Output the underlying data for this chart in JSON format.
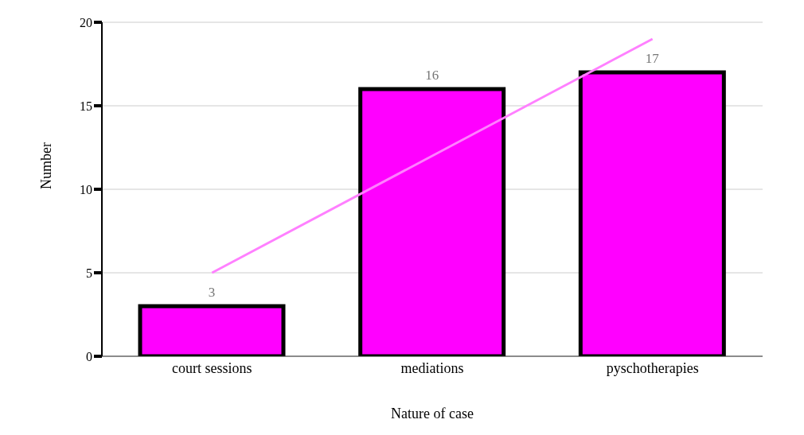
{
  "chart_data": {
    "type": "bar",
    "xlabel": "Nature of case",
    "ylabel": "Number",
    "categories": [
      "court sessions",
      "mediations",
      "pyschotherapies"
    ],
    "series": [
      {
        "color": "#ff00ff",
        "values": [
          3,
          16,
          17
        ],
        "value_labels": [
          "3",
          "16",
          "17"
        ]
      },
      {
        "type": "line",
        "color": "#ff80ff",
        "values": [
          5,
          12,
          19
        ]
      }
    ],
    "ylim": [
      0,
      20
    ],
    "yticks": [
      0,
      5,
      10,
      15,
      20
    ],
    "grid": "y"
  }
}
